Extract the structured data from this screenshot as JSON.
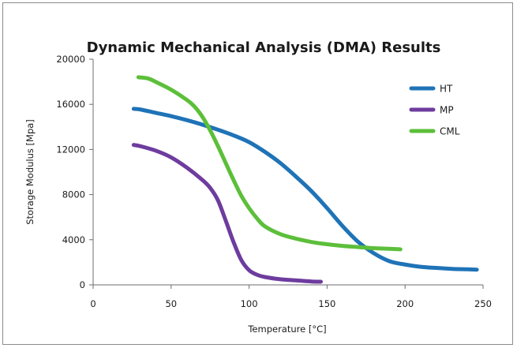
{
  "chart_data": {
    "type": "line",
    "title": "Dynamic Mechanical Analysis (DMA) Results",
    "xlabel": "Temperature [°C]",
    "ylabel": "Storage Modulus [Mpa]",
    "xlim": [
      0,
      250
    ],
    "ylim": [
      0,
      20000
    ],
    "xticks": [
      0,
      50,
      100,
      150,
      200,
      250
    ],
    "yticks": [
      0,
      4000,
      8000,
      12000,
      16000,
      20000
    ],
    "xtick_labels": [
      "0",
      "50",
      "100",
      "150",
      "200",
      "250"
    ],
    "ytick_labels": [
      "0",
      "4000",
      "8000",
      "12000",
      "16000",
      "20000"
    ],
    "grid": false,
    "legend_position": "top-right",
    "series": [
      {
        "name": "HT",
        "color": "#1f73b7",
        "points": [
          [
            26,
            15600
          ],
          [
            30,
            15550
          ],
          [
            40,
            15250
          ],
          [
            50,
            14950
          ],
          [
            60,
            14600
          ],
          [
            70,
            14200
          ],
          [
            80,
            13750
          ],
          [
            90,
            13250
          ],
          [
            100,
            12650
          ],
          [
            110,
            11800
          ],
          [
            120,
            10800
          ],
          [
            130,
            9600
          ],
          [
            140,
            8300
          ],
          [
            150,
            6800
          ],
          [
            160,
            5200
          ],
          [
            170,
            3800
          ],
          [
            180,
            2800
          ],
          [
            190,
            2100
          ],
          [
            200,
            1800
          ],
          [
            210,
            1600
          ],
          [
            220,
            1500
          ],
          [
            230,
            1420
          ],
          [
            240,
            1380
          ],
          [
            246,
            1350
          ]
        ]
      },
      {
        "name": "MP",
        "color": "#6e3c9e",
        "points": [
          [
            26,
            12400
          ],
          [
            30,
            12300
          ],
          [
            40,
            11900
          ],
          [
            50,
            11300
          ],
          [
            60,
            10400
          ],
          [
            70,
            9300
          ],
          [
            75,
            8600
          ],
          [
            80,
            7500
          ],
          [
            85,
            5700
          ],
          [
            90,
            3800
          ],
          [
            95,
            2200
          ],
          [
            100,
            1300
          ],
          [
            105,
            900
          ],
          [
            110,
            700
          ],
          [
            120,
            500
          ],
          [
            130,
            400
          ],
          [
            140,
            300
          ],
          [
            146,
            280
          ]
        ]
      },
      {
        "name": "CML",
        "color": "#5cbf3a",
        "points": [
          [
            29,
            18400
          ],
          [
            35,
            18300
          ],
          [
            40,
            18000
          ],
          [
            50,
            17300
          ],
          [
            60,
            16400
          ],
          [
            65,
            15800
          ],
          [
            70,
            14900
          ],
          [
            75,
            13700
          ],
          [
            80,
            12300
          ],
          [
            85,
            10800
          ],
          [
            90,
            9300
          ],
          [
            95,
            7900
          ],
          [
            100,
            6800
          ],
          [
            105,
            5900
          ],
          [
            110,
            5200
          ],
          [
            120,
            4500
          ],
          [
            130,
            4100
          ],
          [
            140,
            3800
          ],
          [
            150,
            3600
          ],
          [
            160,
            3450
          ],
          [
            170,
            3350
          ],
          [
            180,
            3250
          ],
          [
            190,
            3200
          ],
          [
            197,
            3150
          ]
        ]
      }
    ]
  }
}
